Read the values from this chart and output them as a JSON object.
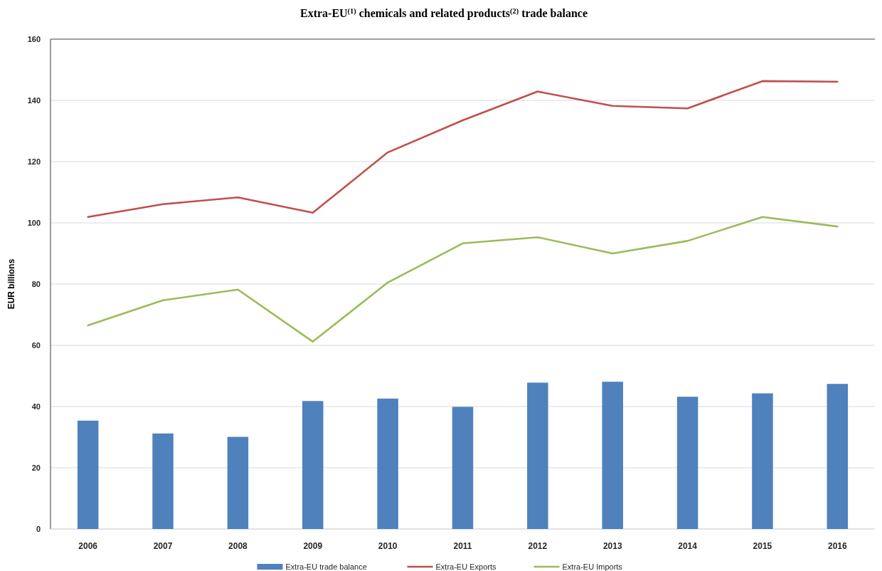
{
  "chart_data": {
    "type": "bar",
    "title": "Extra-EU$^{(1)}$ chemicals and related products$^{(2)}$ trade balance",
    "ylabel": "EUR billions",
    "categories": [
      "2006",
      "2007",
      "2008",
      "2009",
      "2010",
      "2011",
      "2012",
      "2013",
      "2014",
      "2015",
      "2016"
    ],
    "series": [
      {
        "name": "Extra-EU trade balance",
        "color": "#4f81bd",
        "values": [
          35.4,
          31.2,
          30.1,
          41.8,
          42.6,
          39.9,
          47.8,
          48.1,
          43.2,
          44.3,
          47.4
        ]
      },
      {
        "name": "Extra-EU Exports",
        "type": "line",
        "color": "#c0504d",
        "values": [
          101.9,
          106.1,
          108.3,
          103.3,
          123.0,
          133.5,
          142.9,
          138.2,
          137.4,
          146.3,
          146.1
        ]
      },
      {
        "name": "Extra-EU Imports",
        "type": "line",
        "color": "#9bbb59",
        "values": [
          66.5,
          74.7,
          78.2,
          61.2,
          80.5,
          93.3,
          95.3,
          90.0,
          94.1,
          101.9,
          98.8
        ]
      }
    ],
    "ylim": [
      0,
      160
    ],
    "yticks": [
      0,
      20,
      40,
      60,
      80,
      100,
      120,
      140,
      160
    ],
    "grid": "y",
    "legend": "bottom"
  }
}
